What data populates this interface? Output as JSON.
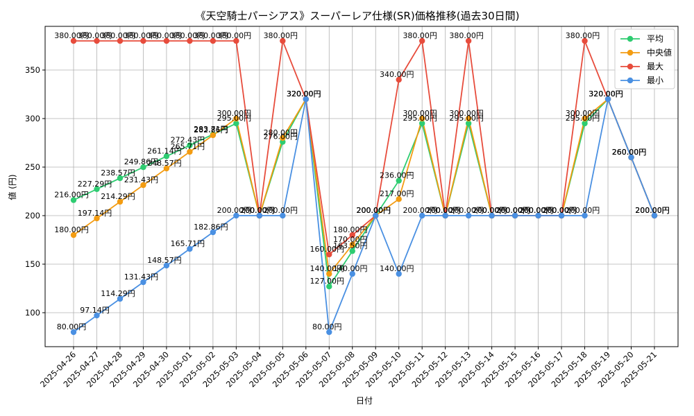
{
  "chart_data": {
    "type": "line",
    "title": "《天空騎士パーシアス》スーパーレア仕様(SR)価格推移(過去30日間)",
    "xlabel": "日付",
    "ylabel": "値 (円)",
    "ylim": [
      65,
      395
    ],
    "yticks": [
      100,
      150,
      200,
      250,
      300,
      350
    ],
    "grid": true,
    "legend_position": "top-right",
    "categories": [
      "2025-04-26",
      "2025-04-27",
      "2025-04-28",
      "2025-04-29",
      "2025-04-30",
      "2025-05-01",
      "2025-05-02",
      "2025-05-03",
      "2025-05-04",
      "2025-05-05",
      "2025-05-06",
      "2025-05-07",
      "2025-05-08",
      "2025-05-09",
      "2025-05-10",
      "2025-05-11",
      "2025-05-12",
      "2025-05-13",
      "2025-05-14",
      "2025-05-15",
      "2025-05-16",
      "2025-05-17",
      "2025-05-18",
      "2025-05-19",
      "2025-05-20",
      "2025-05-21"
    ],
    "series": [
      {
        "name": "平均",
        "color": "#2ecc71",
        "values": [
          216.0,
          227.29,
          238.57,
          249.86,
          261.14,
          272.43,
          283.71,
          295.0,
          200.0,
          276.0,
          320.0,
          127.0,
          163.5,
          200.0,
          236.0,
          295.0,
          200.0,
          295.0,
          200.0,
          200.0,
          200.0,
          200.0,
          295.0,
          320.0,
          260.0,
          200.0
        ],
        "labels": [
          "216.00円",
          "227.29円",
          "238.57円",
          "249.86円",
          "261.14円",
          "272.43円",
          "283.71円",
          "295.00円",
          "200.00円",
          "276.00円",
          "320.00円",
          "127.00円",
          "163.50円",
          "200.00円",
          "236.00円",
          "295.00円",
          "200.00円",
          "295.00円",
          "200.00円",
          "200.00円",
          "200.00円",
          "200.00円",
          "295.00円",
          "320.00円",
          "260.00円",
          "200.00円"
        ]
      },
      {
        "name": "中央値",
        "color": "#f39c12",
        "values": [
          180.0,
          197.14,
          214.29,
          231.43,
          248.57,
          265.71,
          282.86,
          300.0,
          200.0,
          280.0,
          320.0,
          140.0,
          170.0,
          200.0,
          217.0,
          300.0,
          200.0,
          300.0,
          200.0,
          200.0,
          200.0,
          200.0,
          300.0,
          320.0,
          260.0,
          200.0
        ],
        "labels": [
          "180.00円",
          "197.14円",
          "214.29円",
          "231.43円",
          "248.57円",
          "265.71円",
          "282.86円",
          "300.00円",
          "200.00円",
          "280.00円",
          "320.00円",
          "140.00円",
          "170.00円",
          "200.00円",
          "217.00円",
          "300.00円",
          "200.00円",
          "300.00円",
          "200.00円",
          "200.00円",
          "200.00円",
          "200.00円",
          "300.00円",
          "320.00円",
          "260.00円",
          "200.00円"
        ]
      },
      {
        "name": "最大",
        "color": "#e74c3c",
        "values": [
          380,
          380,
          380,
          380,
          380,
          380,
          380,
          380,
          200,
          380,
          320,
          160,
          180,
          200,
          340,
          380,
          200,
          380,
          200,
          200,
          200,
          200,
          380,
          320,
          260,
          200
        ],
        "labels": [
          "380.00円",
          "380.00円",
          "380.00円",
          "380.00円",
          "380.00円",
          "380.00円",
          "380.00円",
          "380.00円",
          "200.00円",
          "380.00円",
          "320.00円",
          "160.00円",
          "180.00円",
          "200.00円",
          "340.00円",
          "380.00円",
          "200.00円",
          "380.00円",
          "200.00円",
          "200.00円",
          "200.00円",
          "200.00円",
          "380.00円",
          "320.00円",
          "260.00円",
          "200.00円"
        ]
      },
      {
        "name": "最小",
        "color": "#4a90e2",
        "values": [
          80.0,
          97.14,
          114.29,
          131.43,
          148.57,
          165.71,
          182.86,
          200.0,
          200.0,
          200.0,
          320.0,
          80.0,
          140.0,
          200.0,
          140.0,
          200.0,
          200.0,
          200.0,
          200.0,
          200.0,
          200.0,
          200.0,
          200.0,
          320.0,
          260.0,
          200.0
        ],
        "labels": [
          "80.00円",
          "97.14円",
          "114.29円",
          "131.43円",
          "148.57円",
          "165.71円",
          "182.86円",
          "200.00円",
          "200.00円",
          "200.00円",
          "320.00円",
          "80.00円",
          "140.00円",
          "200.00円",
          "140.00円",
          "200.00円",
          "200.00円",
          "200.00円",
          "200.00円",
          "200.00円",
          "200.00円",
          "200.00円",
          "200.00円",
          "320.00円",
          "260.00円",
          "200.00円"
        ]
      }
    ]
  }
}
